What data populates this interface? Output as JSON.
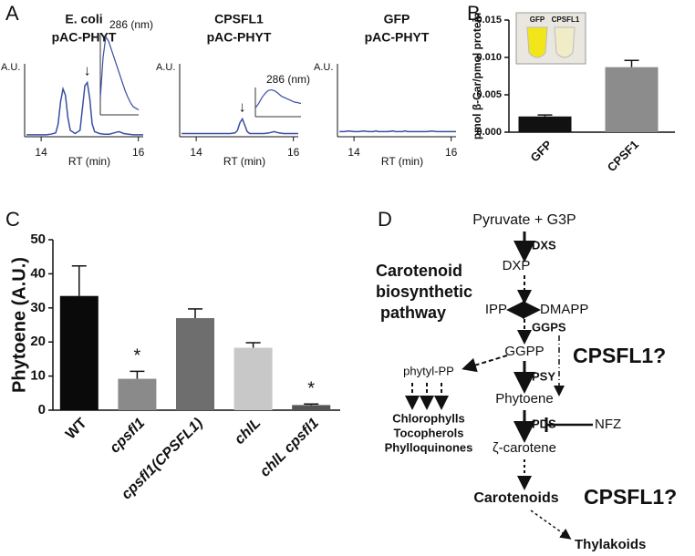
{
  "panel_labels": [
    "A",
    "B",
    "C",
    "D"
  ],
  "chart_data": [
    {
      "type": "line",
      "title": [
        "E. coli",
        "pAC-PHYT"
      ],
      "ylabel": "A.U.",
      "xlabel": "RT (min)",
      "x": [
        13.7,
        13.8,
        13.9,
        14.0,
        14.1,
        14.2,
        14.3,
        14.35,
        14.4,
        14.45,
        14.5,
        14.55,
        14.6,
        14.7,
        14.8,
        14.85,
        14.9,
        14.95,
        15.0,
        15.05,
        15.1,
        15.2,
        15.3,
        15.4,
        15.5,
        15.6,
        15.7,
        15.8,
        15.9,
        16.0,
        16.1
      ],
      "series": [
        {
          "color": "#3b4ea3",
          "values": [
            3,
            3,
            3,
            3,
            3,
            4,
            6,
            20,
            55,
            75,
            65,
            30,
            10,
            5,
            10,
            45,
            80,
            85,
            60,
            20,
            8,
            5,
            4,
            4,
            6,
            8,
            5,
            4,
            3,
            3,
            3
          ]
        }
      ],
      "xlim": [
        13.66,
        16.1
      ],
      "xticks": [
        14,
        16
      ],
      "ylim": [
        0,
        100
      ],
      "annotations": [
        {
          "text": "↓",
          "x": 14.95
        }
      ],
      "inset": {
        "label": "286 (nm)",
        "color": "#3b4ea3",
        "values": [
          20,
          70,
          95,
          90,
          80,
          70,
          60,
          50,
          40,
          30,
          22,
          15,
          10,
          8,
          6
        ]
      }
    },
    {
      "type": "line",
      "title": [
        "CPSFL1",
        "pAC-PHYT"
      ],
      "ylabel": "A.U.",
      "xlabel": "RT (min)",
      "x": [
        13.7,
        13.8,
        13.9,
        14.0,
        14.1,
        14.2,
        14.3,
        14.35,
        14.4,
        14.45,
        14.5,
        14.55,
        14.6,
        14.7,
        14.8,
        14.85,
        14.9,
        14.95,
        15.0,
        15.05,
        15.1,
        15.2,
        15.3,
        15.4,
        15.5,
        15.6,
        15.7,
        15.8,
        15.9,
        16.0,
        16.1
      ],
      "series": [
        {
          "color": "#3b4ea3",
          "values": [
            5,
            5,
            5,
            5,
            5,
            5,
            5,
            5,
            5,
            5,
            5,
            5,
            5,
            5,
            6,
            10,
            22,
            28,
            18,
            8,
            5,
            5,
            5,
            5,
            6,
            8,
            6,
            5,
            5,
            5,
            5
          ]
        }
      ],
      "xlim": [
        13.66,
        16.1
      ],
      "xticks": [
        14,
        16
      ],
      "ylim": [
        0,
        100
      ],
      "annotations": [
        {
          "text": "↓",
          "x": 14.95
        }
      ],
      "inset": {
        "label": "286 (nm)",
        "color": "#3b4ea3",
        "values": [
          30,
          45,
          65,
          80,
          90,
          92,
          88,
          80,
          70,
          65,
          60,
          55,
          50,
          48,
          45
        ]
      }
    },
    {
      "type": "line",
      "title": [
        "GFP",
        "pAC-PHYT"
      ],
      "ylabel": "A.U.",
      "xlabel": "RT (min)",
      "x": [
        13.7,
        13.8,
        13.9,
        14.0,
        14.1,
        14.2,
        14.3,
        14.35,
        14.4,
        14.45,
        14.5,
        14.55,
        14.6,
        14.7,
        14.8,
        14.85,
        14.9,
        14.95,
        15.0,
        15.05,
        15.1,
        15.2,
        15.3,
        15.4,
        15.5,
        15.6,
        15.7,
        15.8,
        15.9,
        16.0,
        16.1
      ],
      "series": [
        {
          "color": "#3b4ea3",
          "values": [
            8,
            8,
            9,
            8,
            8,
            9,
            8,
            8,
            8,
            9,
            8,
            8,
            8,
            8,
            9,
            8,
            8,
            8,
            8,
            9,
            8,
            8,
            8,
            8,
            8,
            9,
            8,
            8,
            8,
            8,
            8
          ]
        }
      ],
      "xlim": [
        13.66,
        16.1
      ],
      "xticks": [
        14,
        16
      ],
      "ylim": [
        0,
        100
      ]
    },
    {
      "type": "bar",
      "ylabel": "pmol β-Car/pmol protein",
      "categories": [
        "GFP",
        "CPSF1"
      ],
      "values": [
        0.0021,
        0.0087
      ],
      "errors": [
        0.0002,
        0.0009
      ],
      "colors": [
        "#111111",
        "#8c8c8c"
      ],
      "ylim": [
        0,
        0.015
      ],
      "yticks": [
        {
          "value": 0,
          "label": "0.000"
        },
        {
          "value": 0.005,
          "label": "0.005"
        },
        {
          "value": 0.01,
          "label": "0.010"
        },
        {
          "value": 0.015,
          "label": "0.015"
        }
      ],
      "photo_labels": [
        "GFP",
        "CPSFL1"
      ]
    },
    {
      "type": "bar",
      "ylabel": "Phytoene (A.U.)",
      "categories": [
        "WT",
        "cpsfl1",
        "cpsfl1(CPSFL1)",
        "chlL",
        "chlL cpsfl1"
      ],
      "values": [
        33.5,
        9.2,
        27,
        18.3,
        1.5
      ],
      "errors": [
        8.8,
        2.2,
        2.7,
        1.5,
        0.3
      ],
      "colors": [
        "#0a0a0a",
        "#8a8a8a",
        "#6e6e6e",
        "#c8c8c8",
        "#555555"
      ],
      "significance": [
        null,
        "*",
        null,
        null,
        "*"
      ],
      "ylim": [
        0,
        50
      ],
      "yticks": [
        0,
        10,
        20,
        30,
        40,
        50
      ]
    }
  ],
  "diagram": {
    "pyruvate": "Pyruvate + G3P",
    "dxs": "DXS",
    "dxp": "DXP",
    "pathway_title": [
      "Carotenoid",
      "biosynthetic",
      " pathway"
    ],
    "ipp": "IPP",
    "dmapp": "DMAPP",
    "ggps": "GGPS",
    "ggpp": "GGPP",
    "phytyl": "phytyl-PP",
    "products": [
      "Chlorophylls",
      "Tocopherols",
      "Phylloquinones"
    ],
    "psy": "PSY",
    "phytoene": "Phytoene",
    "cpsfl1_a": "CPSFL1?",
    "pds": "PDS",
    "nfz": "NFZ",
    "zeta": "ζ-carotene",
    "carotenoids": "Carotenoids",
    "cpsfl1_b": "CPSFL1?",
    "thylakoids": "Thylakoids"
  }
}
